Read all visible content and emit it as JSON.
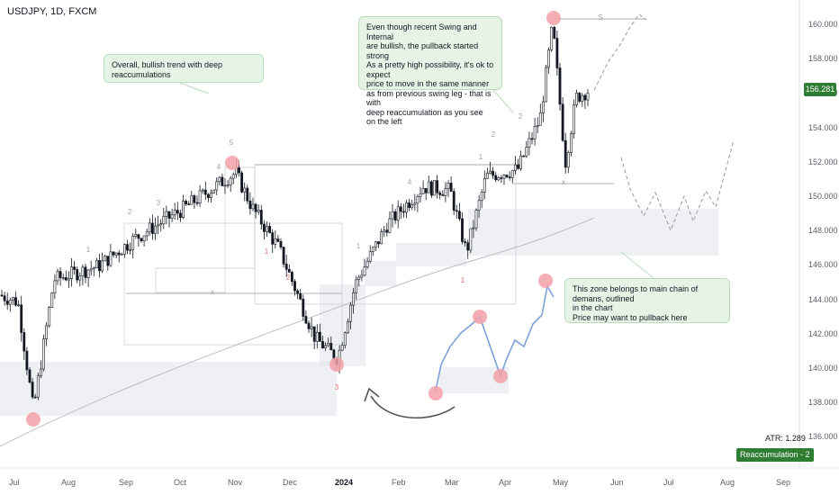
{
  "header": {
    "title": "USDJPY, 1D, FXCM"
  },
  "callouts": {
    "top_left": "Overall, bullish trend with deep reaccumulations",
    "top_center": "Even though recent Swing and Internal\nare bullish, the pullback started strong\nAs a pretty high possibility, it's ok to expect\nprice to move in the same manner\nas from previous swing leg - that is with\ndeep reaccumulation as you see on the left",
    "right": "This zone belongs to main chain of demans, outlined\nin the chart\nPrice may want to pullback here"
  },
  "price_axis": {
    "ticks": [
      "160.000",
      "158.000",
      "156.000",
      "154.000",
      "152.000",
      "150.000",
      "148.000",
      "146.000",
      "144.000",
      "142.000",
      "140.000",
      "138.000",
      "136.000"
    ],
    "current_price": "156.281"
  },
  "time_axis": {
    "ticks": [
      "Jul",
      "Aug",
      "Sep",
      "Oct",
      "Nov",
      "Dec",
      "2024",
      "Feb",
      "Mar",
      "Apr",
      "May",
      "Jun",
      "Jul",
      "Aug",
      "Sep"
    ]
  },
  "indicators": {
    "atr": "ATR: 1.289",
    "badge": "Reaccumulation - 2"
  },
  "colors": {
    "bull": "#2e7d32",
    "candle": "#131722",
    "highlight": "#f4a0a8",
    "zone": "#e0e3eb",
    "overlay": "#7e9fd9",
    "callout_bg": "#e6f4e6",
    "wave_label": "#a0a0a0",
    "wave_label_red": "#e57373"
  },
  "chart_data": {
    "type": "candlestick",
    "symbol": "USDJPY",
    "timeframe": "1D",
    "ylim": [
      135,
      161
    ],
    "approx_close_path": [
      [
        "Jun 2023",
        144.3
      ],
      [
        "Jul 2023",
        138.0
      ],
      [
        "Aug 2023",
        145.0
      ],
      [
        "Sep 2023",
        148.0
      ],
      [
        "Oct 2023",
        149.8
      ],
      [
        "Nov 2023",
        151.9
      ],
      [
        "Dec 2023",
        141.5
      ],
      [
        "2024",
        140.8
      ],
      [
        "Feb 2024",
        150.8
      ],
      [
        "Mar 2024",
        147.0
      ],
      [
        "Apr 2024",
        151.8
      ],
      [
        "May 2024",
        160.2
      ],
      [
        "May 2024 (last)",
        156.281
      ]
    ],
    "wave_labels": [
      "1",
      "2",
      "3",
      "4",
      "5",
      "1",
      "2",
      "3",
      "1",
      "4",
      "1",
      "2",
      "1",
      "2",
      "S",
      "x",
      "x"
    ]
  }
}
